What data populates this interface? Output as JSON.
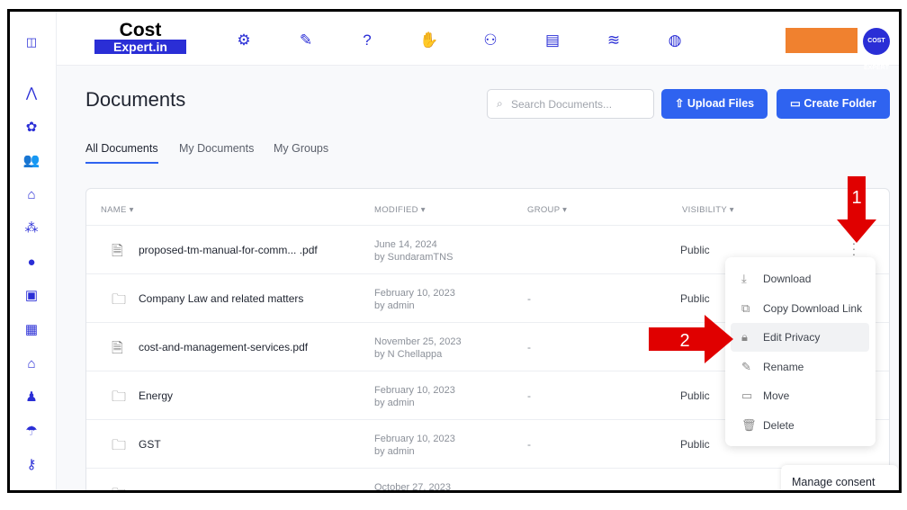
{
  "header": {
    "logo_line1": "Cost",
    "logo_line2": "Expert.in",
    "avatar_text": "COST EXPERT",
    "nav_icons": [
      "brain-gear-icon",
      "writing-icon",
      "idea-question-icon",
      "raised-hands-icon",
      "handshake-icon",
      "presentation-icon",
      "books-icon",
      "globe-icon"
    ],
    "accent": "#2a2ed6",
    "orange_block": "#f0812f"
  },
  "sidebar": {
    "icons": [
      "sidebar-toggle-icon",
      "yoga-icon",
      "network-icon",
      "users-icon",
      "home-icon",
      "group-icon",
      "chat-icon",
      "briefcase-icon",
      "calendar-icon",
      "house-icon",
      "person-icon",
      "umbrella-icon",
      "key-icon"
    ]
  },
  "page": {
    "title": "Documents",
    "search_placeholder": "Search Documents...",
    "upload_label": "Upload Files",
    "create_folder_label": "Create Folder",
    "tabs": [
      {
        "label": "All Documents",
        "active": true
      },
      {
        "label": "My Documents"
      },
      {
        "label": "My Groups"
      }
    ]
  },
  "table": {
    "headers": {
      "name": "NAME ▾",
      "modified": "MODIFIED ▾",
      "group": "GROUP ▾",
      "visibility": "VISIBILITY ▾"
    },
    "rows": [
      {
        "type": "pdf",
        "name": "proposed-tm-manual-for-comm... .pdf",
        "date": "June 14, 2024",
        "by": "by SundaramTNS",
        "group": "",
        "visibility": "Public"
      },
      {
        "type": "folder",
        "name": "Company Law and related matters",
        "date": "February 10, 2023",
        "by": "by admin",
        "group": "-",
        "visibility": "Public"
      },
      {
        "type": "pdf",
        "name": "cost-and-management-services.pdf",
        "date": "November 25, 2023",
        "by": "by N Chellappa",
        "group": "-",
        "visibility": ""
      },
      {
        "type": "folder",
        "name": "Energy",
        "date": "February 10, 2023",
        "by": "by admin",
        "group": "-",
        "visibility": "Public"
      },
      {
        "type": "folder",
        "name": "GST",
        "date": "February 10, 2023",
        "by": "by admin",
        "group": "-",
        "visibility": "Public"
      },
      {
        "type": "folder",
        "name": "",
        "date": "October 27, 2023",
        "by": "",
        "group": "",
        "visibility": ""
      }
    ]
  },
  "menu": {
    "items": [
      {
        "label": "Download",
        "icon": "download-icon"
      },
      {
        "label": "Copy Download Link",
        "icon": "copy-icon"
      },
      {
        "label": "Edit Privacy",
        "icon": "lock-icon",
        "highlighted": true
      },
      {
        "label": "Rename",
        "icon": "edit-icon"
      },
      {
        "label": "Move",
        "icon": "folder-icon"
      },
      {
        "label": "Delete",
        "icon": "trash-icon"
      }
    ]
  },
  "annotations": {
    "step1": "1",
    "step2": "2",
    "color": "#e00000"
  },
  "consent": {
    "label": "Manage consent"
  }
}
